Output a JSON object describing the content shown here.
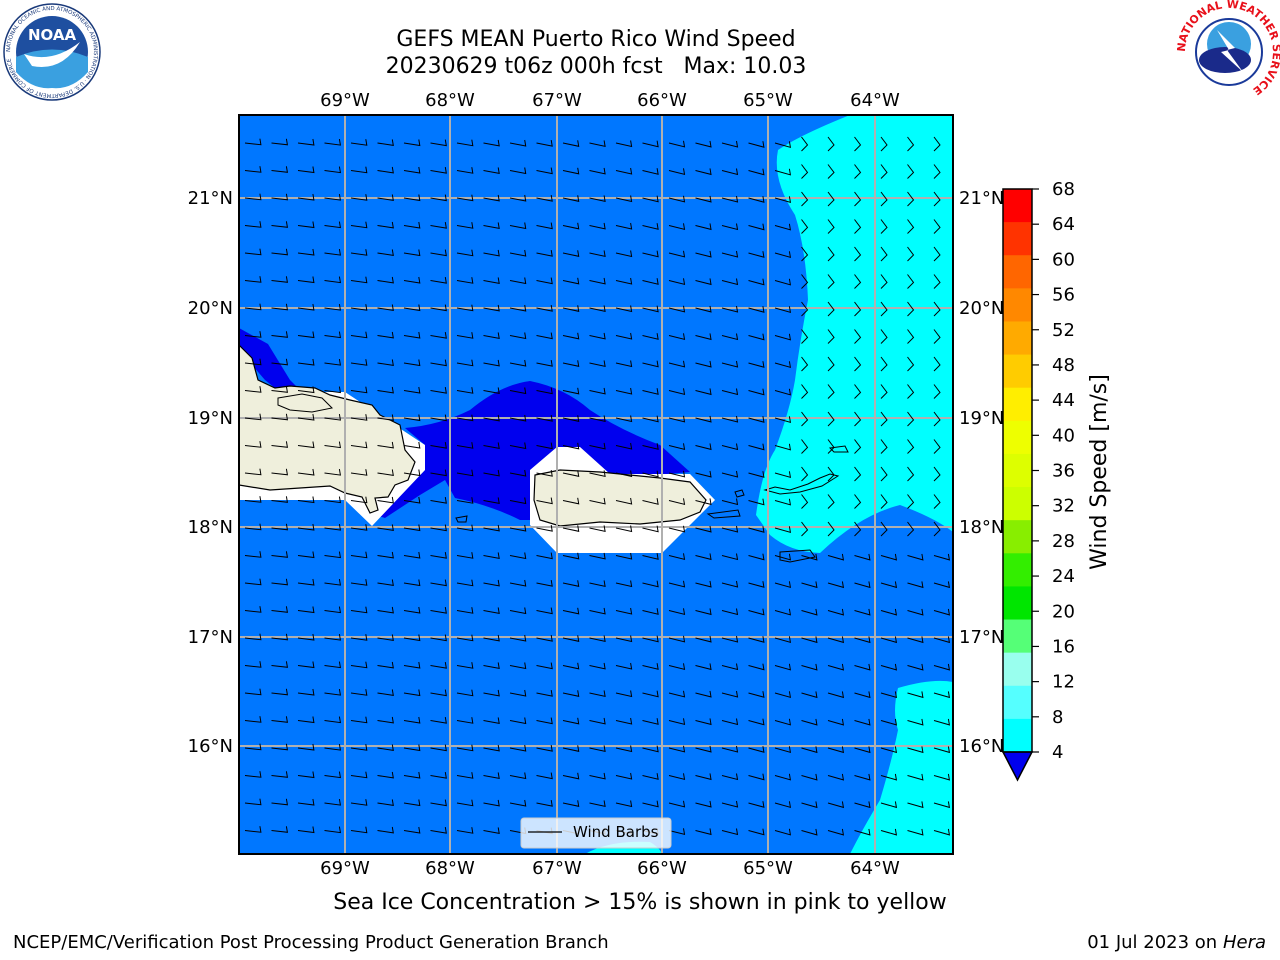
{
  "header": {
    "title_line1": "GEFS MEAN Puerto Rico Wind Speed",
    "title_line2": "20230629 t06z 000h fcst   Max: 10.03"
  },
  "map": {
    "lon_labels": [
      "69°W",
      "68°W",
      "67°W",
      "66°W",
      "65°W",
      "64°W"
    ],
    "lat_labels": [
      "21°N",
      "20°N",
      "19°N",
      "18°N",
      "17°N",
      "16°N"
    ],
    "legend_label": "Wind Barbs"
  },
  "colorbar": {
    "label": "Wind Speed [m/s]",
    "ticks": [
      "68",
      "64",
      "60",
      "56",
      "52",
      "48",
      "44",
      "40",
      "36",
      "32",
      "28",
      "24",
      "20",
      "16",
      "12",
      "8",
      "4"
    ],
    "colors": [
      "#ff0000",
      "#ff3300",
      "#ff6600",
      "#ff8800",
      "#ffaa00",
      "#ffcc00",
      "#ffee00",
      "#eeff00",
      "#ddff00",
      "#ccff00",
      "#88ee00",
      "#33ee00",
      "#00e600",
      "#55ff77",
      "#99ffee",
      "#55ffff",
      "#00ffff",
      "#0077ff"
    ],
    "under_color": "#0000ee"
  },
  "field_colors": {
    "band_4_8": "#0077ff",
    "band_8_12": "#00ffff",
    "band_under_4": "#0000ee",
    "land": "#efefdc"
  },
  "subtitle": "Sea Ice Concentration > 15% is shown in pink to yellow",
  "footer": {
    "left": "NCEP/EMC/Verification Post Processing Product Generation Branch",
    "date": "01 Jul 2023 on ",
    "machine": "Hera"
  },
  "logos": {
    "noaa_text": "NOAA",
    "noaa_ring": "NATIONAL OCEANIC AND ATMOSPHERIC ADMINISTRATION · U.S. DEPARTMENT OF COMMERCE",
    "nws_ring": "NATIONAL WEATHER SERVICE"
  }
}
